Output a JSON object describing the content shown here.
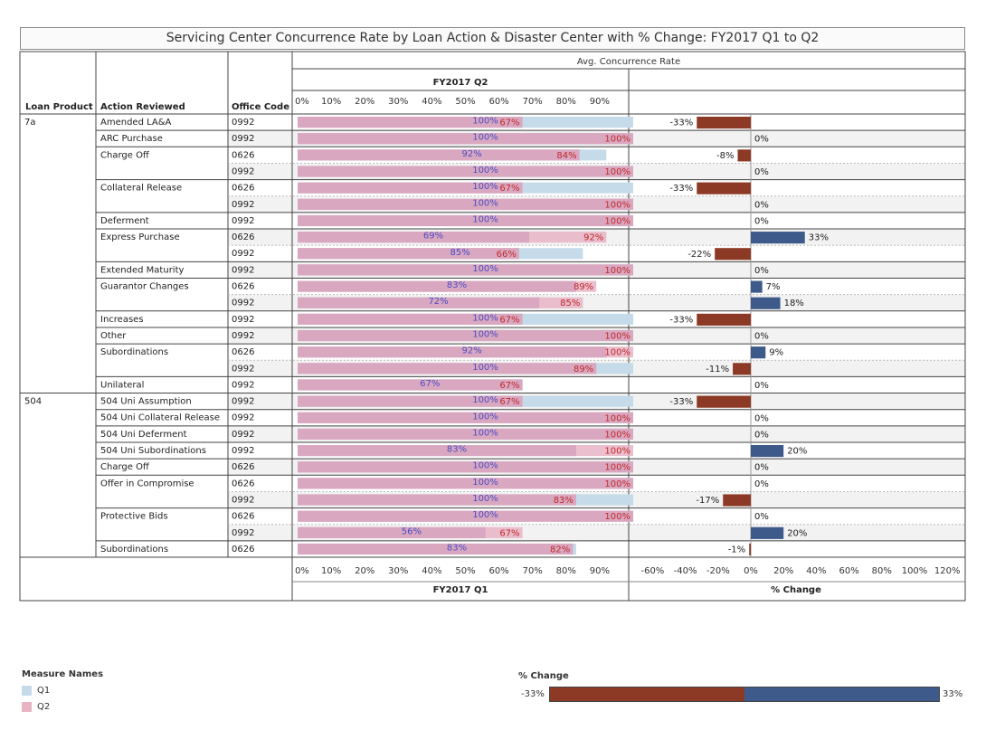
{
  "title": "Servicing Center Concurrence Rate by Loan Action  & Disaster Center with % Change: FY2017 Q1 to Q2",
  "header": {
    "loan_product": "Loan Product",
    "action_reviewed": "Action Reviewed",
    "office_code": "Office Code",
    "avg_label": "Avg. Concurrence Rate",
    "top_axis_title": "FY2017 Q2",
    "bottom_axis_title": "FY2017 Q1",
    "change_axis_title": "% Change"
  },
  "colors": {
    "q1": "#c6dbea",
    "q2": "#e8b4c4",
    "overlap": "#d9a8c0",
    "q1_label": "#4b4bc4",
    "q2_label": "#c0282c",
    "neg": "#8c3a26",
    "pos": "#3e5a8a"
  },
  "chart_data": {
    "type": "bar",
    "rate_axis": {
      "ticks": [
        "0%",
        "10%",
        "20%",
        "30%",
        "40%",
        "50%",
        "60%",
        "70%",
        "80%",
        "90%"
      ],
      "range": [
        0,
        100
      ]
    },
    "change_axis": {
      "ticks": [
        "-60%",
        "-40%",
        "-20%",
        "0%",
        "20%",
        "40%",
        "60%",
        "80%",
        "100%",
        "120%"
      ],
      "range": [
        -60,
        120
      ]
    },
    "rows": [
      {
        "product": "7a",
        "action": "Amended LA&A",
        "office": "0992",
        "q1": 100,
        "q2": 67,
        "q1_label": "100%",
        "q2_label": "67%",
        "change": -33,
        "change_label": "-33%"
      },
      {
        "product": "",
        "action": "ARC Purchase",
        "office": "0992",
        "q1": 100,
        "q2": 100,
        "q1_label": "100%",
        "q2_label": "100%",
        "change": 0,
        "change_label": "0%"
      },
      {
        "product": "",
        "action": "Charge Off",
        "office": "0626",
        "q1": 92,
        "q2": 84,
        "q1_label": "92%",
        "q2_label": "84%",
        "change": -8,
        "change_label": "-8%"
      },
      {
        "product": "",
        "action": "",
        "office": "0992",
        "q1": 100,
        "q2": 100,
        "q1_label": "100%",
        "q2_label": "100%",
        "change": 0,
        "change_label": "0%"
      },
      {
        "product": "",
        "action": "Collateral Release",
        "office": "0626",
        "q1": 100,
        "q2": 67,
        "q1_label": "100%",
        "q2_label": "67%",
        "change": -33,
        "change_label": "-33%"
      },
      {
        "product": "",
        "action": "",
        "office": "0992",
        "q1": 100,
        "q2": 100,
        "q1_label": "100%",
        "q2_label": "100%",
        "change": 0,
        "change_label": "0%"
      },
      {
        "product": "",
        "action": "Deferment",
        "office": "0992",
        "q1": 100,
        "q2": 100,
        "q1_label": "100%",
        "q2_label": "100%",
        "change": 0,
        "change_label": "0%"
      },
      {
        "product": "",
        "action": "Express Purchase",
        "office": "0626",
        "q1": 69,
        "q2": 92,
        "q1_label": "69%",
        "q2_label": "92%",
        "change": 33,
        "change_label": "33%"
      },
      {
        "product": "",
        "action": "",
        "office": "0992",
        "q1": 85,
        "q2": 66,
        "q1_label": "85%",
        "q2_label": "66%",
        "change": -22,
        "change_label": "-22%"
      },
      {
        "product": "",
        "action": "Extended Maturity",
        "office": "0992",
        "q1": 100,
        "q2": 100,
        "q1_label": "100%",
        "q2_label": "100%",
        "change": 0,
        "change_label": "0%"
      },
      {
        "product": "",
        "action": "Guarantor Changes",
        "office": "0626",
        "q1": 83,
        "q2": 89,
        "q1_label": "83%",
        "q2_label": "89%",
        "change": 7,
        "change_label": "7%"
      },
      {
        "product": "",
        "action": "",
        "office": "0992",
        "q1": 72,
        "q2": 85,
        "q1_label": "72%",
        "q2_label": "85%",
        "change": 18,
        "change_label": "18%"
      },
      {
        "product": "",
        "action": "Increases",
        "office": "0992",
        "q1": 100,
        "q2": 67,
        "q1_label": "100%",
        "q2_label": "67%",
        "change": -33,
        "change_label": "-33%"
      },
      {
        "product": "",
        "action": "Other",
        "office": "0992",
        "q1": 100,
        "q2": 100,
        "q1_label": "100%",
        "q2_label": "100%",
        "change": 0,
        "change_label": "0%"
      },
      {
        "product": "",
        "action": "Subordinations",
        "office": "0626",
        "q1": 92,
        "q2": 100,
        "q1_label": "92%",
        "q2_label": "100%",
        "change": 9,
        "change_label": "9%"
      },
      {
        "product": "",
        "action": "",
        "office": "0992",
        "q1": 100,
        "q2": 89,
        "q1_label": "100%",
        "q2_label": "89%",
        "change": -11,
        "change_label": "-11%"
      },
      {
        "product": "",
        "action": "Unilateral",
        "office": "0992",
        "q1": 67,
        "q2": 67,
        "q1_label": "67%",
        "q2_label": "67%",
        "change": 0,
        "change_label": "0%"
      },
      {
        "product": "504",
        "action": "504 Uni Assumption",
        "office": "0992",
        "q1": 100,
        "q2": 67,
        "q1_label": "100%",
        "q2_label": "67%",
        "change": -33,
        "change_label": "-33%"
      },
      {
        "product": "",
        "action": "504 Uni Collateral Release",
        "office": "0992",
        "q1": 100,
        "q2": 100,
        "q1_label": "100%",
        "q2_label": "100%",
        "change": 0,
        "change_label": "0%"
      },
      {
        "product": "",
        "action": "504 Uni Deferment",
        "office": "0992",
        "q1": 100,
        "q2": 100,
        "q1_label": "100%",
        "q2_label": "100%",
        "change": 0,
        "change_label": "0%"
      },
      {
        "product": "",
        "action": "504 Uni Subordinations",
        "office": "0992",
        "q1": 83,
        "q2": 100,
        "q1_label": "83%",
        "q2_label": "100%",
        "change": 20,
        "change_label": "20%"
      },
      {
        "product": "",
        "action": "Charge Off",
        "office": "0626",
        "q1": 100,
        "q2": 100,
        "q1_label": "100%",
        "q2_label": "100%",
        "change": 0,
        "change_label": "0%"
      },
      {
        "product": "",
        "action": "Offer in Compromise",
        "office": "0626",
        "q1": 100,
        "q2": 100,
        "q1_label": "100%",
        "q2_label": "100%",
        "change": 0,
        "change_label": "0%"
      },
      {
        "product": "",
        "action": "",
        "office": "0992",
        "q1": 100,
        "q2": 83,
        "q1_label": "100%",
        "q2_label": "83%",
        "change": -17,
        "change_label": "-17%"
      },
      {
        "product": "",
        "action": "Protective Bids",
        "office": "0626",
        "q1": 100,
        "q2": 100,
        "q1_label": "100%",
        "q2_label": "100%",
        "change": 0,
        "change_label": "0%"
      },
      {
        "product": "",
        "action": "",
        "office": "0992",
        "q1": 56,
        "q2": 67,
        "q1_label": "56%",
        "q2_label": "67%",
        "change": 20,
        "change_label": "20%"
      },
      {
        "product": "",
        "action": "Subordinations",
        "office": "0626",
        "q1": 83,
        "q2": 82,
        "q1_label": "83%",
        "q2_label": "82%",
        "change": -1,
        "change_label": "-1%"
      }
    ]
  },
  "legend_measure": {
    "title": "Measure Names",
    "items": [
      "Q1",
      "Q2"
    ]
  },
  "legend_change": {
    "title": "% Change",
    "min_label": "-33%",
    "max_label": "33%",
    "min": -33,
    "max": 33
  }
}
